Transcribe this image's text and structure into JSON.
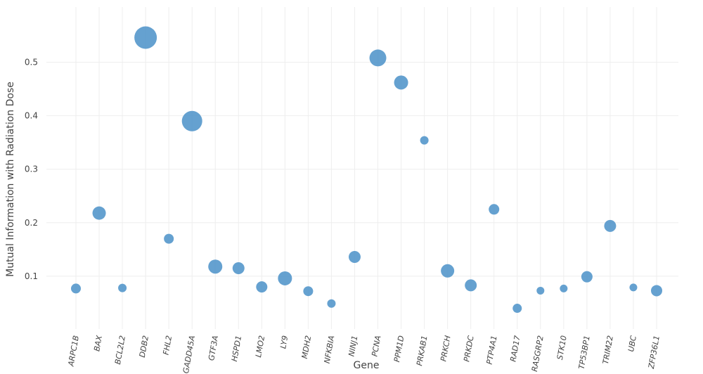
{
  "chart_data": {
    "type": "scatter",
    "xlabel": "Gene",
    "ylabel": "Mutual Information with Radiation Dose",
    "y_ticks": [
      0.1,
      0.2,
      0.3,
      0.4,
      0.5
    ],
    "ylim": [
      0,
      0.57
    ],
    "grid": true,
    "marker_color": "#4a90c8",
    "categories": [
      "ARPC1B",
      "BAX",
      "BCL2L2",
      "DDB2",
      "FHL2",
      "GADD45A",
      "GTF3A",
      "HSPD1",
      "LMO2",
      "LY9",
      "MDH2",
      "NFKBIA",
      "NINJ1",
      "PCNA",
      "PPM1D",
      "PRKAB1",
      "PRKCH",
      "PRKDC",
      "PTP4A1",
      "RAD17",
      "RASGRP2",
      "STK10",
      "TP53BP1",
      "TRIM22",
      "UBC",
      "ZFP36L1"
    ],
    "values": [
      0.077,
      0.218,
      0.078,
      0.546,
      0.17,
      0.39,
      0.118,
      0.115,
      0.08,
      0.096,
      0.072,
      0.049,
      0.136,
      0.508,
      0.462,
      0.354,
      0.11,
      0.083,
      0.225,
      0.04,
      0.073,
      0.077,
      0.099,
      0.194,
      0.079,
      0.073
    ],
    "sizes": [
      7,
      9.5,
      6,
      16,
      7,
      14.5,
      10,
      8.5,
      8,
      10,
      7,
      6,
      8.5,
      12,
      10,
      6,
      9.5,
      8.5,
      7.5,
      6.5,
      5.5,
      5.5,
      8,
      8.5,
      5.5,
      8
    ]
  }
}
